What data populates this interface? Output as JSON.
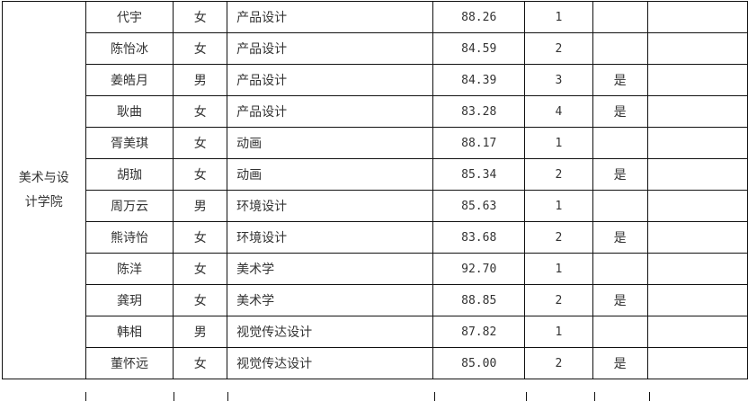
{
  "college": "美术与设计学院",
  "college_lines": [
    "美术与设",
    "计学院"
  ],
  "rows": [
    {
      "name": "代宇",
      "gender": "女",
      "major": "产品设计",
      "score": "88.26",
      "rank": "1",
      "flag": ""
    },
    {
      "name": "陈怡冰",
      "gender": "女",
      "major": "产品设计",
      "score": "84.59",
      "rank": "2",
      "flag": ""
    },
    {
      "name": "姜皓月",
      "gender": "男",
      "major": "产品设计",
      "score": "84.39",
      "rank": "3",
      "flag": "是"
    },
    {
      "name": "耿曲",
      "gender": "女",
      "major": "产品设计",
      "score": "83.28",
      "rank": "4",
      "flag": "是"
    },
    {
      "name": "胥美琪",
      "gender": "女",
      "major": "动画",
      "score": "88.17",
      "rank": "1",
      "flag": ""
    },
    {
      "name": "胡珈",
      "gender": "女",
      "major": "动画",
      "score": "85.34",
      "rank": "2",
      "flag": "是"
    },
    {
      "name": "周万云",
      "gender": "男",
      "major": "环境设计",
      "score": "85.63",
      "rank": "1",
      "flag": ""
    },
    {
      "name": "熊诗怡",
      "gender": "女",
      "major": "环境设计",
      "score": "83.68",
      "rank": "2",
      "flag": "是"
    },
    {
      "name": "陈洋",
      "gender": "女",
      "major": "美术学",
      "score": "92.70",
      "rank": "1",
      "flag": ""
    },
    {
      "name": "龚玥",
      "gender": "女",
      "major": "美术学",
      "score": "88.85",
      "rank": "2",
      "flag": "是"
    },
    {
      "name": "韩相",
      "gender": "男",
      "major": "视觉传达设计",
      "score": "87.82",
      "rank": "1",
      "flag": ""
    },
    {
      "name": "董怀远",
      "gender": "女",
      "major": "视觉传达设计",
      "score": "85.00",
      "rank": "2",
      "flag": "是"
    }
  ]
}
